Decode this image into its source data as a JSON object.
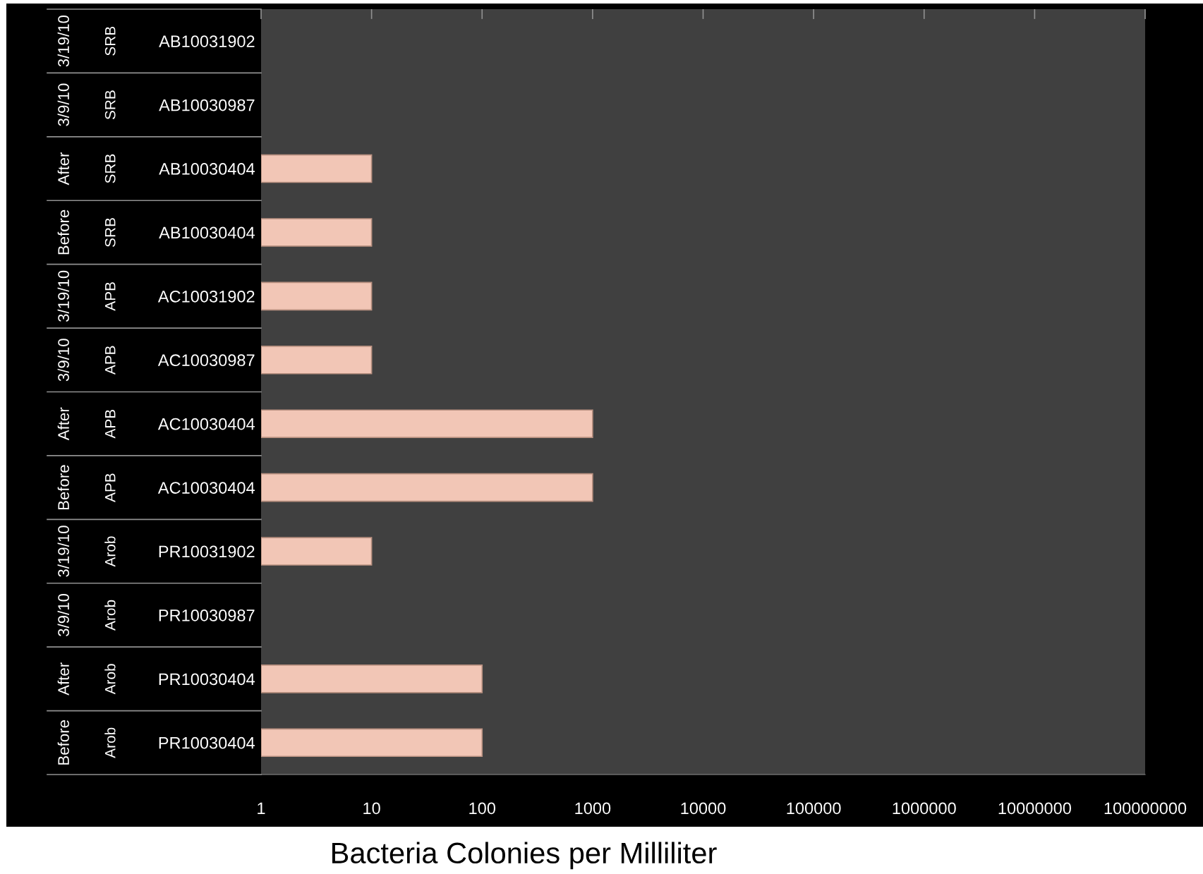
{
  "chart_data": {
    "type": "bar",
    "orientation": "horizontal",
    "xlabel": "Bacteria Colonies per Milliliter",
    "categories": [
      "AB10031902",
      "AB10030987",
      "AB10030404",
      "AB10030404",
      "AC10031902",
      "AC10030987",
      "AC10030404",
      "AC10030404",
      "PR10031902",
      "PR10030987",
      "PR10030404",
      "PR10030404"
    ],
    "annotations": [
      "3/19/10",
      "SRB",
      "3/9/10",
      "SRB",
      "After",
      "SRB",
      "Before",
      "SRB",
      "3/19/10",
      "APB",
      "3/9/10",
      "APB",
      "After",
      "APB",
      "Before",
      "APB",
      "3/19/10",
      "Arob",
      "3/9/10",
      "Arob",
      "After",
      "Arob",
      "Before",
      "Arob"
    ],
    "values": [
      null,
      null,
      10,
      10,
      10,
      10,
      1000,
      1000,
      10,
      null,
      100,
      100
    ],
    "color": "#f2c6b6",
    "log": "x",
    "xlim": [
      1,
      100000000
    ],
    "xticks": [
      1,
      10,
      100,
      1000,
      10000,
      100000,
      1000000,
      10000000,
      100000000
    ],
    "grid": false
  }
}
